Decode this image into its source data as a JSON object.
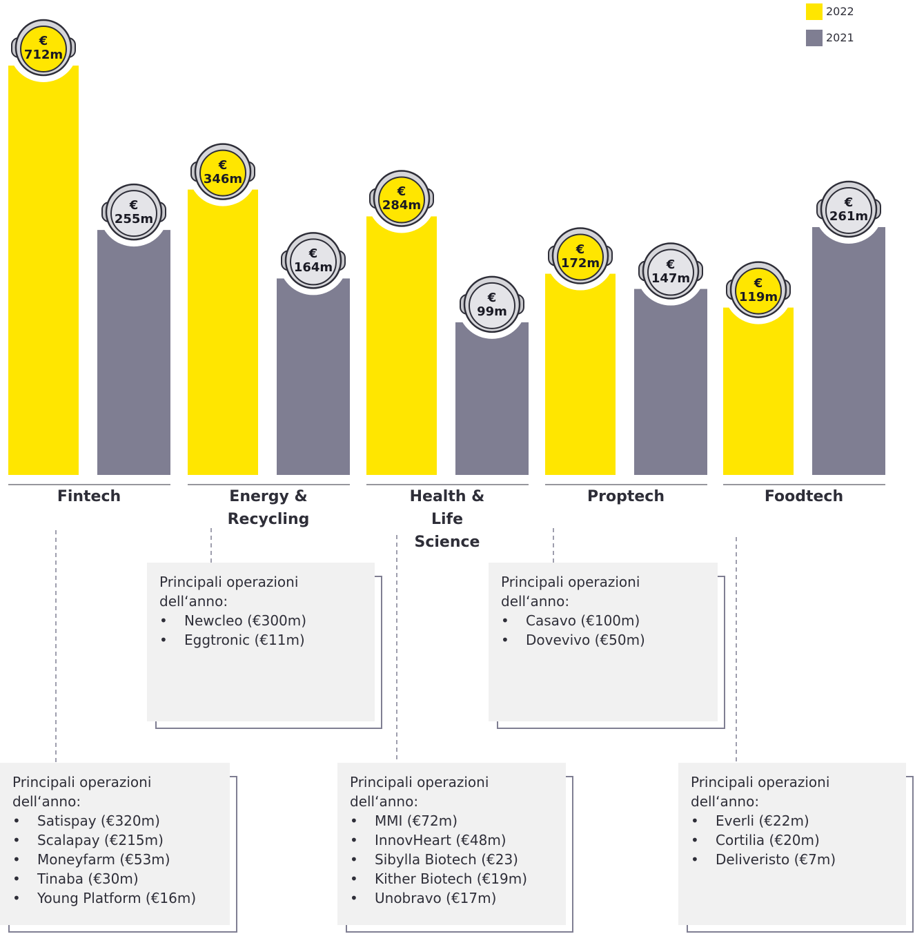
{
  "chart_data": {
    "type": "bar",
    "categories": [
      "Fintech",
      "Energy & Recycling",
      "Health & Life Science",
      "Proptech",
      "Foodtech"
    ],
    "series": [
      {
        "name": "2022",
        "color": "#FFE600",
        "values": [
          712,
          346,
          284,
          172,
          119
        ],
        "value_labels": [
          "€ 712m",
          "€ 346m",
          "€ 284m",
          "€ 172m",
          "€ 119m"
        ]
      },
      {
        "name": "2021",
        "color": "#7F7E92",
        "values": [
          255,
          164,
          99,
          147,
          261
        ],
        "value_labels": [
          "€ 255m",
          "€ 164m",
          "€ 99m",
          "€ 147m",
          "€ 261m"
        ]
      }
    ],
    "annotations": [
      {
        "title": "Principali operazioni dell‘anno:",
        "items": [
          "Satispay (€320m)",
          "Scalapay (€215m)",
          "Moneyfarm (€53m)",
          "Tinaba (€30m)",
          "Young Platform (€16m)"
        ]
      },
      {
        "title": "Principali operazioni dell‘anno:",
        "items": [
          "Newcleo (€300m)",
          "Eggtronic (€11m)"
        ]
      },
      {
        "title": "Principali operazioni dell‘anno:",
        "items": [
          "MMI (€72m)",
          "InnovHeart (€48m)",
          "Sibylla Biotech (€23)",
          "Kither Biotech (€19m)",
          "Unobravo (€17m)"
        ]
      },
      {
        "title": "Principali operazioni dell‘anno:",
        "items": [
          "Casavo (€100m)",
          "Dovevivo (€50m)"
        ]
      },
      {
        "title": "Principali operazioni dell‘anno:",
        "items": [
          "Everli (€22m)",
          "Cortilia (€20m)",
          "Deliveristo (€7m)"
        ]
      }
    ]
  }
}
